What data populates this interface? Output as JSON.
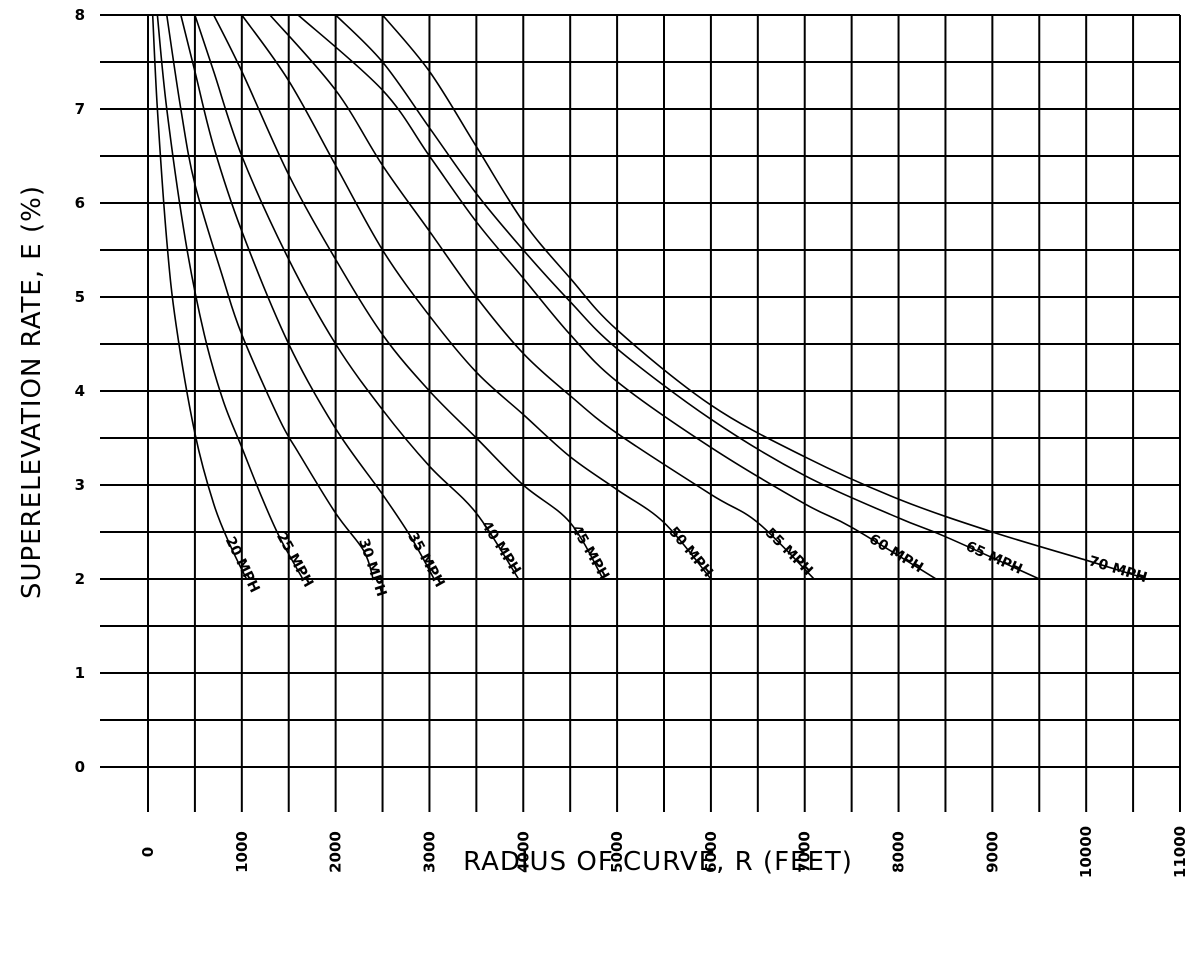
{
  "chart_data": {
    "type": "line",
    "title": "",
    "xlabel": "RADIUS OF CURVE, R (FEET)",
    "ylabel": "SUPERELEVATION RATE, E (%)",
    "xlim": [
      0,
      11000
    ],
    "ylim": [
      0,
      8
    ],
    "x_ticks": [
      "0",
      "1000",
      "2000",
      "3000",
      "4000",
      "5000",
      "6000",
      "7000",
      "8000",
      "9000",
      "10000",
      "11000"
    ],
    "y_ticks": [
      "0",
      "1",
      "2",
      "3",
      "4",
      "5",
      "6",
      "7",
      "8"
    ],
    "grid": true,
    "series": [
      {
        "name": "20 MPH",
        "points": [
          [
            50,
            8
          ],
          [
            100,
            7.0
          ],
          [
            200,
            5.6
          ],
          [
            300,
            4.7
          ],
          [
            500,
            3.55
          ],
          [
            700,
            2.8
          ],
          [
            880,
            2.35
          ],
          [
            1050,
            2.0
          ]
        ]
      },
      {
        "name": "25 MPH",
        "points": [
          [
            100,
            8
          ],
          [
            200,
            7.0
          ],
          [
            400,
            5.6
          ],
          [
            600,
            4.6
          ],
          [
            800,
            3.9
          ],
          [
            1000,
            3.4
          ],
          [
            1200,
            2.9
          ],
          [
            1400,
            2.45
          ],
          [
            1650,
            2.0
          ]
        ]
      },
      {
        "name": "30 MPH",
        "points": [
          [
            200,
            8
          ],
          [
            350,
            7.0
          ],
          [
            500,
            6.2
          ],
          [
            800,
            5.2
          ],
          [
            1000,
            4.6
          ],
          [
            1400,
            3.7
          ],
          [
            1600,
            3.35
          ],
          [
            2000,
            2.7
          ],
          [
            2300,
            2.3
          ],
          [
            2400,
            2.0
          ]
        ]
      },
      {
        "name": "35 MPH",
        "points": [
          [
            350,
            8
          ],
          [
            500,
            7.4
          ],
          [
            700,
            6.6
          ],
          [
            1000,
            5.7
          ],
          [
            1500,
            4.5
          ],
          [
            2000,
            3.6
          ],
          [
            2500,
            2.9
          ],
          [
            2800,
            2.45
          ],
          [
            3050,
            2.0
          ]
        ]
      },
      {
        "name": "40 MPH",
        "points": [
          [
            500,
            8
          ],
          [
            700,
            7.4
          ],
          [
            1000,
            6.5
          ],
          [
            1500,
            5.4
          ],
          [
            2000,
            4.5
          ],
          [
            2500,
            3.8
          ],
          [
            3000,
            3.2
          ],
          [
            3500,
            2.7
          ],
          [
            3950,
            2.0
          ]
        ]
      },
      {
        "name": "45 MPH",
        "points": [
          [
            700,
            8
          ],
          [
            1000,
            7.4
          ],
          [
            1500,
            6.3
          ],
          [
            2000,
            5.4
          ],
          [
            2500,
            4.6
          ],
          [
            3000,
            4.0
          ],
          [
            3500,
            3.5
          ],
          [
            4000,
            3.0
          ],
          [
            4500,
            2.6
          ],
          [
            4850,
            2.0
          ]
        ]
      },
      {
        "name": "50 MPH",
        "points": [
          [
            1000,
            8
          ],
          [
            1500,
            7.3
          ],
          [
            2000,
            6.4
          ],
          [
            2500,
            5.5
          ],
          [
            3000,
            4.8
          ],
          [
            3500,
            4.2
          ],
          [
            4000,
            3.75
          ],
          [
            4500,
            3.3
          ],
          [
            5000,
            2.95
          ],
          [
            5500,
            2.6
          ],
          [
            6000,
            2.0
          ]
        ]
      },
      {
        "name": "55 MPH",
        "points": [
          [
            1300,
            8
          ],
          [
            2000,
            7.2
          ],
          [
            2500,
            6.4
          ],
          [
            3000,
            5.7
          ],
          [
            3500,
            5.0
          ],
          [
            4000,
            4.4
          ],
          [
            4500,
            3.95
          ],
          [
            5000,
            3.55
          ],
          [
            6000,
            2.9
          ],
          [
            6500,
            2.6
          ],
          [
            7100,
            2.0
          ]
        ]
      },
      {
        "name": "60 MPH",
        "points": [
          [
            1600,
            8
          ],
          [
            2500,
            7.2
          ],
          [
            3000,
            6.5
          ],
          [
            3500,
            5.8
          ],
          [
            4000,
            5.2
          ],
          [
            4500,
            4.6
          ],
          [
            5000,
            4.1
          ],
          [
            6000,
            3.4
          ],
          [
            7000,
            2.8
          ],
          [
            7500,
            2.55
          ],
          [
            8400,
            2.0
          ]
        ]
      },
      {
        "name": "65 MPH",
        "points": [
          [
            2000,
            8
          ],
          [
            2500,
            7.5
          ],
          [
            3000,
            6.8
          ],
          [
            3500,
            6.1
          ],
          [
            4000,
            5.5
          ],
          [
            4500,
            4.95
          ],
          [
            5000,
            4.45
          ],
          [
            6000,
            3.7
          ],
          [
            7000,
            3.1
          ],
          [
            8000,
            2.65
          ],
          [
            8500,
            2.45
          ],
          [
            9500,
            2.0
          ]
        ]
      },
      {
        "name": "70 MPH",
        "points": [
          [
            2500,
            8
          ],
          [
            3000,
            7.4
          ],
          [
            3500,
            6.6
          ],
          [
            4000,
            5.8
          ],
          [
            4500,
            5.2
          ],
          [
            5000,
            4.65
          ],
          [
            6000,
            3.85
          ],
          [
            7000,
            3.3
          ],
          [
            8000,
            2.85
          ],
          [
            9000,
            2.5
          ],
          [
            10000,
            2.2
          ],
          [
            10650,
            2.0
          ]
        ]
      }
    ]
  }
}
